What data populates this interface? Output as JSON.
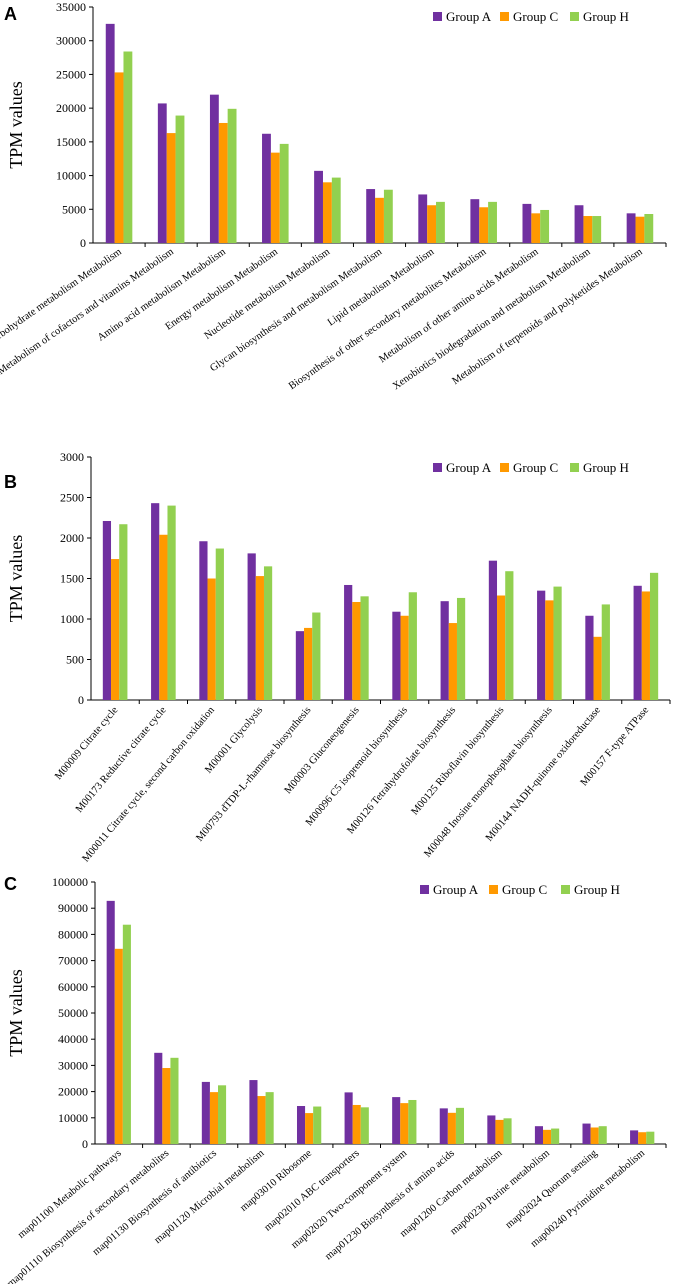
{
  "colors": {
    "Group A": "#7030A0",
    "Group C": "#FF9900",
    "Group H": "#92D050"
  },
  "chart_data": [
    {
      "panel": "A",
      "type": "bar",
      "ylabel": "TPM values",
      "ylim": [
        0,
        35000
      ],
      "yticks": [
        "0",
        "5000",
        "10000",
        "15000",
        "20000",
        "25000",
        "30000",
        "35000"
      ],
      "categories": [
        "Carbohydrate metabolism Metabolism",
        "Metabolism of cofactors and vitamins Metabolism",
        "Amino acid metabolism Metabolism",
        "Energy metabolism Metabolism",
        "Nucleotide metabolism Metabolism",
        "Glycan biosynthesis and metabolism Metabolism",
        "Lipid metabolism Metabolism",
        "Biosynthesis of other secondary metabolites Metabolism",
        "Metabolism of other amino acids Metabolism",
        "Xenobiotics biodegradation and metabolism Metabolism",
        "Metabolism of terpenoids and polyketides Metabolism"
      ],
      "series": [
        {
          "name": "Group A",
          "values": [
            32500,
            20700,
            22000,
            16200,
            10700,
            8000,
            7200,
            6500,
            5800,
            5600,
            4400
          ]
        },
        {
          "name": "Group C",
          "values": [
            25300,
            16300,
            17800,
            13400,
            9000,
            6700,
            5600,
            5300,
            4400,
            4000,
            3900
          ]
        },
        {
          "name": "Group H",
          "values": [
            28400,
            18900,
            19900,
            14700,
            9700,
            7900,
            6100,
            6100,
            4900,
            4000,
            4300
          ]
        }
      ],
      "legend": "top-right"
    },
    {
      "panel": "B",
      "type": "bar",
      "ylabel": "TPM values",
      "ylim": [
        0,
        3000
      ],
      "yticks": [
        "0",
        "500",
        "1000",
        "1500",
        "2000",
        "2500",
        "3000"
      ],
      "categories": [
        "M00009 Citrate cycle",
        "M00173 Reductive citrate cycle",
        "M00011 Citrate cycle, second carbon oxidation",
        "M00001 Glycolysis",
        "M00793 dTDP-L-rhamnose biosynthesis",
        "M00003 Gluconeogenesis",
        "M00096 C5 isoprenoid biosynthesis",
        "M00126 Tetrahydrofolate biosynthesis",
        "M00125 Riboflavin biosynthesis",
        "M00048 Inosine monophosphate biosynthesis",
        "M00144 NADH-quinone oxidoreductase",
        "M00157 F-type ATPase"
      ],
      "series": [
        {
          "name": "Group A",
          "values": [
            2210,
            2430,
            1960,
            1810,
            850,
            1420,
            1090,
            1220,
            1720,
            1350,
            1040,
            1410
          ]
        },
        {
          "name": "Group C",
          "values": [
            1740,
            2040,
            1500,
            1530,
            890,
            1210,
            1040,
            950,
            1290,
            1230,
            780,
            1340
          ]
        },
        {
          "name": "Group H",
          "values": [
            2170,
            2400,
            1870,
            1650,
            1080,
            1280,
            1330,
            1260,
            1590,
            1400,
            1180,
            1570
          ]
        }
      ],
      "legend": "top-right"
    },
    {
      "panel": "C",
      "type": "bar",
      "ylabel": "TPM values",
      "ylim": [
        0,
        100000
      ],
      "yticks": [
        "0",
        "10000",
        "20000",
        "30000",
        "40000",
        "50000",
        "60000",
        "70000",
        "80000",
        "90000",
        "100000"
      ],
      "categories": [
        "map01100 Metabolic pathways",
        "map01110 Biosynthesis of secondary metabolites",
        "map01130 Biosynthesis of antibiotics",
        "map01120 Microbial metabolism",
        "map03010 Ribosome",
        "map02010 ABC transporters",
        "map02020 Two-component system",
        "map01230 Biosynthesis of amino acids",
        "map01200 Carbon metabolism",
        "map00230 Purine metabolism",
        "map02024 Quorum sensing",
        "map00240 Pyrimidine metabolism"
      ],
      "series": [
        {
          "name": "Group A",
          "values": [
            92800,
            34800,
            23700,
            24400,
            14500,
            19700,
            17900,
            13600,
            10900,
            6800,
            7800,
            5200
          ]
        },
        {
          "name": "Group C",
          "values": [
            74500,
            29000,
            19800,
            18300,
            11800,
            14900,
            15600,
            11900,
            9200,
            5400,
            6300,
            4500
          ]
        },
        {
          "name": "Group H",
          "values": [
            83700,
            32900,
            22400,
            19800,
            14300,
            14000,
            16800,
            13800,
            9800,
            5900,
            6800,
            4700
          ]
        }
      ],
      "legend": "top-right"
    }
  ]
}
